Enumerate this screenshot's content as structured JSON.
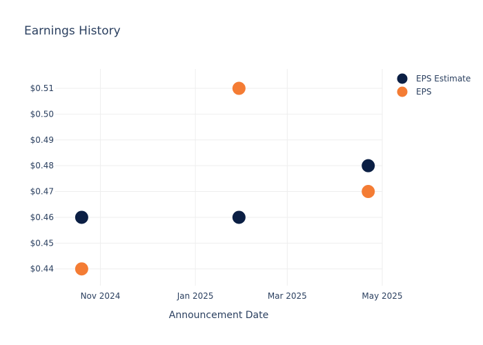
{
  "chart_data": {
    "type": "scatter",
    "title": "Earnings History",
    "xlabel": "Announcement Date",
    "ylabel": "",
    "x_ticks": [
      {
        "date": "2024-11-01",
        "label": "Nov 2024"
      },
      {
        "date": "2025-01-01",
        "label": "Jan 2025"
      },
      {
        "date": "2025-03-01",
        "label": "Mar 2025"
      },
      {
        "date": "2025-05-01",
        "label": "May 2025"
      }
    ],
    "y_ticks": [
      {
        "value": 0.44,
        "label": "$0.44"
      },
      {
        "value": 0.45,
        "label": "$0.45"
      },
      {
        "value": 0.46,
        "label": "$0.46"
      },
      {
        "value": 0.47,
        "label": "$0.47"
      },
      {
        "value": 0.48,
        "label": "$0.48"
      },
      {
        "value": 0.49,
        "label": "$0.49"
      },
      {
        "value": 0.5,
        "label": "$0.50"
      },
      {
        "value": 0.51,
        "label": "$0.51"
      }
    ],
    "xlim": [
      "2024-10-03",
      "2025-05-01"
    ],
    "ylim": [
      0.4335,
      0.5175
    ],
    "grid": true,
    "legend_position": "top-right",
    "series": [
      {
        "name": "EPS Estimate",
        "color": "#0b1f44",
        "points": [
          {
            "x": "2024-10-20",
            "y": 0.46
          },
          {
            "x": "2025-01-29",
            "y": 0.46
          },
          {
            "x": "2025-04-22",
            "y": 0.48
          }
        ]
      },
      {
        "name": "EPS",
        "color": "#f47c34",
        "points": [
          {
            "x": "2024-10-20",
            "y": 0.44
          },
          {
            "x": "2025-01-29",
            "y": 0.51
          },
          {
            "x": "2025-04-22",
            "y": 0.47
          }
        ]
      }
    ]
  }
}
